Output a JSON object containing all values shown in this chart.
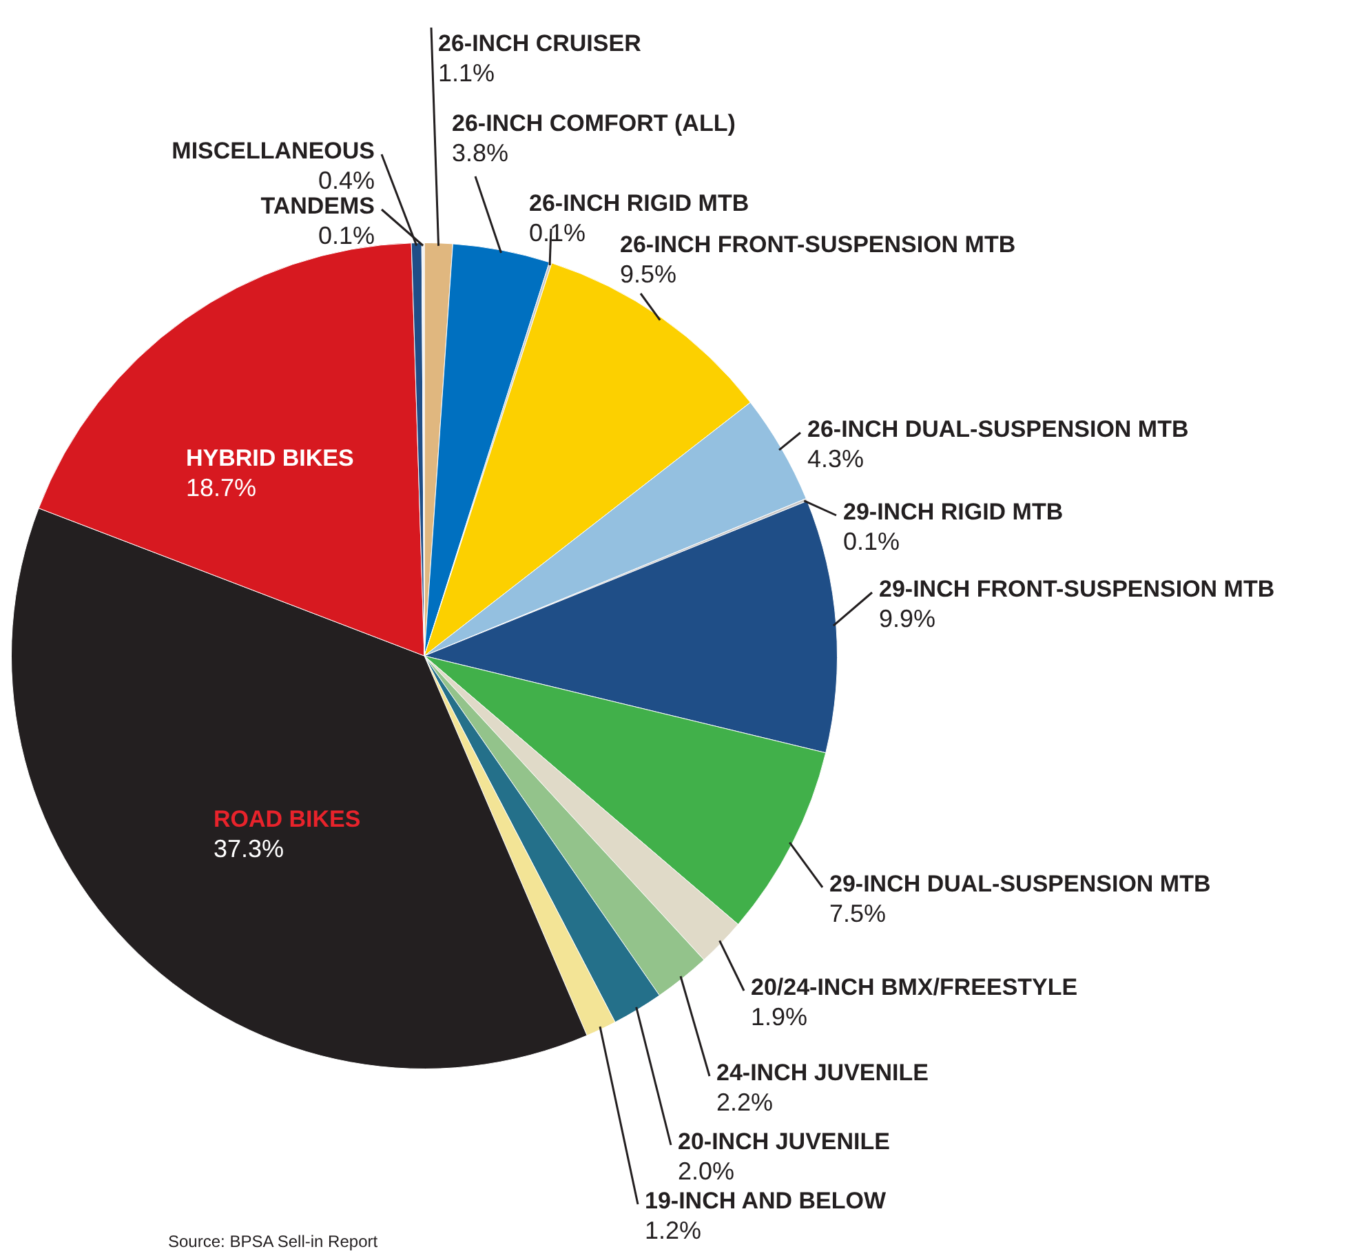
{
  "chart_data": {
    "type": "pie",
    "categories": [
      "26-INCH CRUISER",
      "26-INCH COMFORT (ALL)",
      "26-INCH RIGID MTB",
      "26-INCH FRONT-SUSPENSION MTB",
      "26-INCH DUAL-SUSPENSION MTB",
      "29-INCH RIGID MTB",
      "29-INCH FRONT-SUSPENSION MTB",
      "29-INCH DUAL-SUSPENSION MTB",
      "20/24-INCH BMX/FREESTYLE",
      "24-INCH JUVENILE",
      "20-INCH JUVENILE",
      "19-INCH AND BELOW",
      "ROAD BIKES",
      "HYBRID BIKES",
      "MISCELLANEOUS",
      "TANDEMS"
    ],
    "values": [
      1.1,
      3.8,
      0.1,
      9.5,
      4.3,
      0.1,
      9.9,
      7.5,
      1.9,
      2.2,
      2.0,
      1.2,
      37.3,
      18.7,
      0.4,
      0.1
    ],
    "value_labels": [
      "1.1%",
      "3.8%",
      "0.1%",
      "9.5%",
      "4.3%",
      "0.1%",
      "9.9%",
      "7.5%",
      "1.9%",
      "2.2%",
      "2.0%",
      "1.2%",
      "37.3%",
      "18.7%",
      "0.4%",
      "0.1%"
    ],
    "colors": [
      "#e0b77f",
      "#0070c0",
      "#c8c8c8",
      "#fcd000",
      "#94c0e0",
      "#c8c8c8",
      "#1f4e87",
      "#41b04a",
      "#e0dac8",
      "#93c38b",
      "#24708a",
      "#f3e496",
      "#231f20",
      "#d71920",
      "#1f4e87",
      "#f0f0f0"
    ],
    "annotations": [
      "Source: BPSA Sell-in Report"
    ]
  }
}
